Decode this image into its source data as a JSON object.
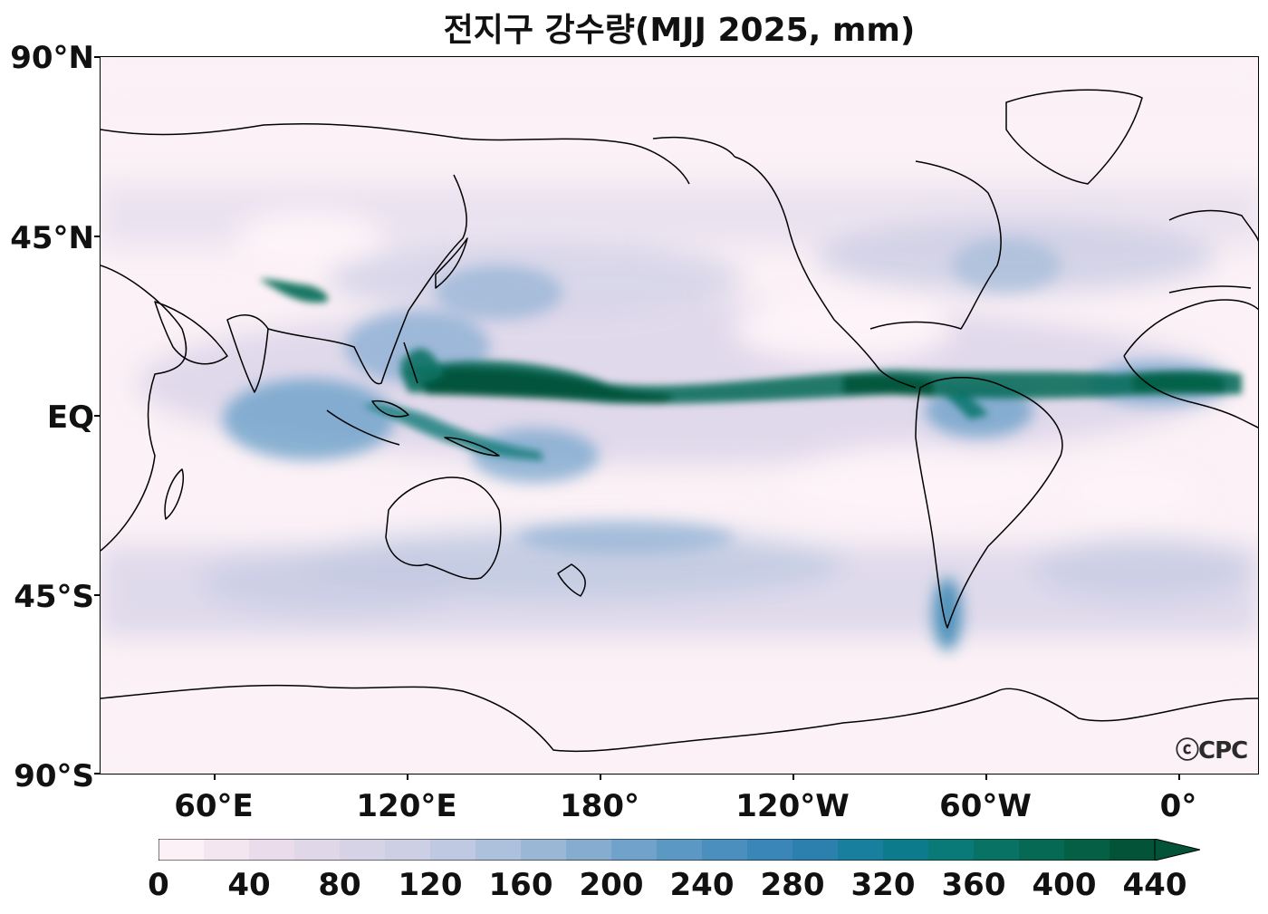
{
  "title": "전지구 강수량(MJJ 2025, mm)",
  "watermark": "ⓒCPC",
  "lat_labels": [
    "90°N",
    "45°N",
    "EQ",
    "45°S",
    "90°S"
  ],
  "lon_labels": [
    "60°E",
    "120°E",
    "180°",
    "120°W",
    "60°W",
    "0°"
  ],
  "colorbar": {
    "tick_labels": [
      "0",
      "40",
      "80",
      "120",
      "160",
      "200",
      "240",
      "280",
      "320",
      "360",
      "400",
      "440"
    ],
    "levels": [
      0,
      20,
      40,
      60,
      80,
      100,
      120,
      140,
      160,
      180,
      200,
      220,
      240,
      260,
      280,
      300,
      320,
      340,
      360,
      380,
      400,
      420,
      440
    ],
    "extend": "max",
    "colors": [
      "#fbf1f6",
      "#f3e6f0",
      "#eadceb",
      "#e0d7e9",
      "#d7d3e7",
      "#cdd0e5",
      "#bfc9e1",
      "#adc0dc",
      "#9bb7d6",
      "#86acd0",
      "#71a2cb",
      "#5b98c4",
      "#4a8fbe",
      "#3b86b9",
      "#2c80ae",
      "#18809e",
      "#0c7b8c",
      "#0a7a78",
      "#087265",
      "#066953",
      "#045f44",
      "#035339"
    ]
  },
  "icons": {
    "colorbar_extend": "triangle-arrow-icon",
    "watermark": "cpc-logo"
  }
}
